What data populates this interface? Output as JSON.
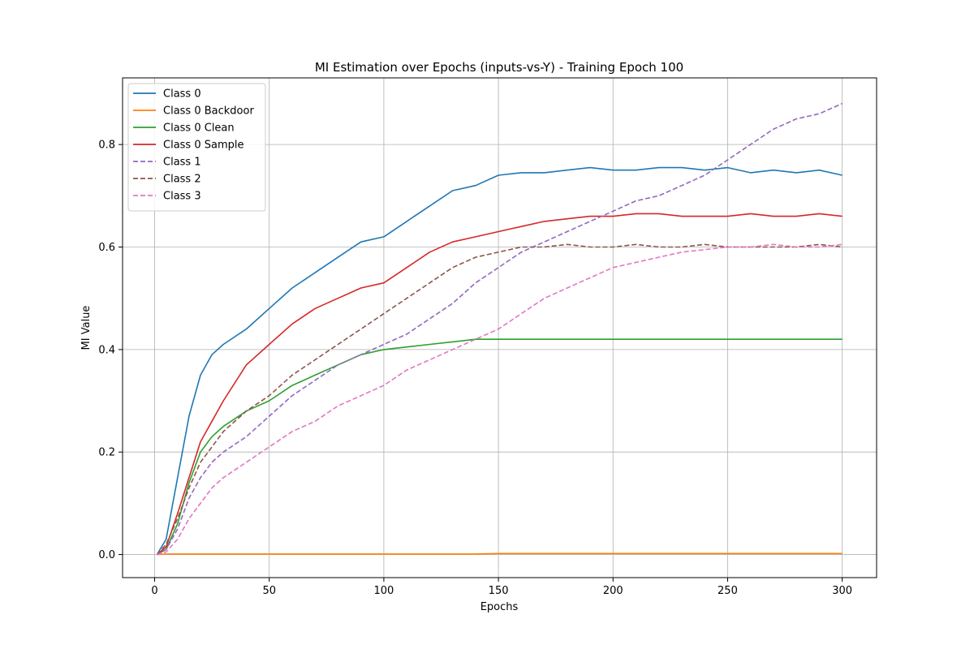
{
  "chart_data": {
    "type": "line",
    "title": "MI Estimation over Epochs (inputs-vs-Y) - Training Epoch 100",
    "xlabel": "Epochs",
    "ylabel": "MI Value",
    "xlim": [
      -14,
      315
    ],
    "ylim": [
      -0.045,
      0.93
    ],
    "xticks": [
      0,
      50,
      100,
      150,
      200,
      250,
      300
    ],
    "yticks": [
      0.0,
      0.2,
      0.4,
      0.6,
      0.8
    ],
    "ytick_labels": [
      "0.0",
      "0.2",
      "0.4",
      "0.6",
      "0.8"
    ],
    "grid": true,
    "legend_position": "upper-left",
    "x": [
      1,
      5,
      10,
      15,
      20,
      25,
      30,
      40,
      50,
      60,
      70,
      80,
      90,
      100,
      110,
      120,
      130,
      140,
      150,
      160,
      170,
      180,
      190,
      200,
      210,
      220,
      230,
      240,
      250,
      260,
      270,
      280,
      290,
      300
    ],
    "series": [
      {
        "name": "Class 0",
        "color": "#1f77b4",
        "dash": "solid",
        "values": [
          0.0,
          0.03,
          0.15,
          0.27,
          0.35,
          0.39,
          0.41,
          0.44,
          0.48,
          0.52,
          0.55,
          0.58,
          0.61,
          0.62,
          0.65,
          0.68,
          0.71,
          0.72,
          0.74,
          0.745,
          0.745,
          0.75,
          0.755,
          0.75,
          0.75,
          0.755,
          0.755,
          0.75,
          0.755,
          0.745,
          0.75,
          0.745,
          0.75,
          0.74
        ]
      },
      {
        "name": "Class 0 Backdoor",
        "color": "#ff7f0e",
        "dash": "solid",
        "values": [
          0.0,
          0.001,
          0.001,
          0.001,
          0.001,
          0.001,
          0.001,
          0.001,
          0.001,
          0.001,
          0.001,
          0.001,
          0.001,
          0.001,
          0.001,
          0.001,
          0.001,
          0.001,
          0.002,
          0.002,
          0.002,
          0.002,
          0.002,
          0.002,
          0.002,
          0.002,
          0.002,
          0.002,
          0.002,
          0.002,
          0.002,
          0.002,
          0.002,
          0.002
        ]
      },
      {
        "name": "Class 0 Clean",
        "color": "#2ca02c",
        "dash": "solid",
        "values": [
          0.0,
          0.01,
          0.06,
          0.14,
          0.2,
          0.23,
          0.25,
          0.28,
          0.3,
          0.33,
          0.35,
          0.37,
          0.39,
          0.4,
          0.405,
          0.41,
          0.415,
          0.42,
          0.42,
          0.42,
          0.42,
          0.42,
          0.42,
          0.42,
          0.42,
          0.42,
          0.42,
          0.42,
          0.42,
          0.42,
          0.42,
          0.42,
          0.42,
          0.42
        ]
      },
      {
        "name": "Class 0 Sample",
        "color": "#d62728",
        "dash": "solid",
        "values": [
          0.0,
          0.015,
          0.08,
          0.15,
          0.22,
          0.26,
          0.3,
          0.37,
          0.41,
          0.45,
          0.48,
          0.5,
          0.52,
          0.53,
          0.56,
          0.59,
          0.61,
          0.62,
          0.63,
          0.64,
          0.65,
          0.655,
          0.66,
          0.66,
          0.665,
          0.665,
          0.66,
          0.66,
          0.66,
          0.665,
          0.66,
          0.66,
          0.665,
          0.66
        ]
      },
      {
        "name": "Class 1",
        "color": "#9467bd",
        "dash": "dashed",
        "values": [
          0.0,
          0.01,
          0.05,
          0.11,
          0.15,
          0.18,
          0.2,
          0.23,
          0.27,
          0.31,
          0.34,
          0.37,
          0.39,
          0.41,
          0.43,
          0.46,
          0.49,
          0.53,
          0.56,
          0.59,
          0.61,
          0.63,
          0.65,
          0.67,
          0.69,
          0.7,
          0.72,
          0.74,
          0.77,
          0.8,
          0.83,
          0.85,
          0.86,
          0.88
        ]
      },
      {
        "name": "Class 2",
        "color": "#8c564b",
        "dash": "dashed",
        "values": [
          0.0,
          0.02,
          0.07,
          0.13,
          0.18,
          0.21,
          0.24,
          0.28,
          0.31,
          0.35,
          0.38,
          0.41,
          0.44,
          0.47,
          0.5,
          0.53,
          0.56,
          0.58,
          0.59,
          0.6,
          0.6,
          0.605,
          0.6,
          0.6,
          0.605,
          0.6,
          0.6,
          0.605,
          0.6,
          0.6,
          0.6,
          0.6,
          0.605,
          0.6
        ]
      },
      {
        "name": "Class 3",
        "color": "#e377c2",
        "dash": "dashed",
        "values": [
          0.0,
          0.005,
          0.03,
          0.07,
          0.1,
          0.13,
          0.15,
          0.18,
          0.21,
          0.24,
          0.26,
          0.29,
          0.31,
          0.33,
          0.36,
          0.38,
          0.4,
          0.42,
          0.44,
          0.47,
          0.5,
          0.52,
          0.54,
          0.56,
          0.57,
          0.58,
          0.59,
          0.595,
          0.6,
          0.6,
          0.605,
          0.6,
          0.6,
          0.605
        ]
      }
    ]
  }
}
